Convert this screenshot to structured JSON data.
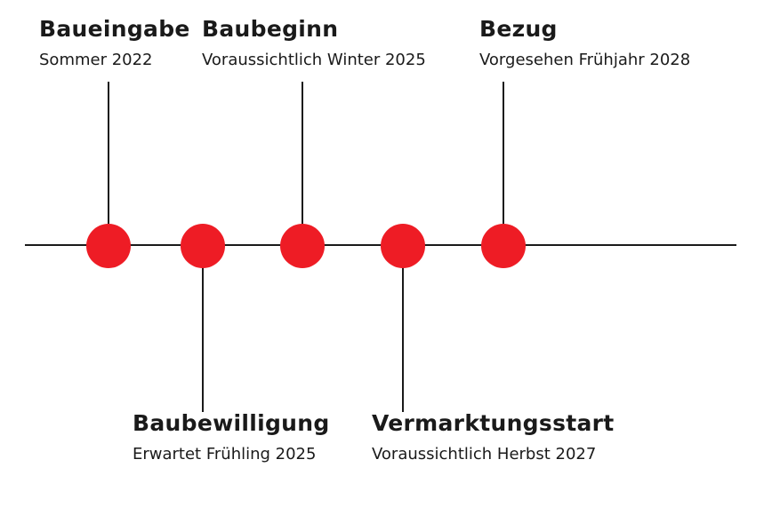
{
  "milestones": [
    {
      "title": "Baueingabe",
      "date": "Sommer 2022"
    },
    {
      "title": "Baubewilligung",
      "date": "Erwartet Frühling 2025"
    },
    {
      "title": "Baubeginn",
      "date": "Voraussichtlich Winter 2025"
    },
    {
      "title": "Vermarktungsstart",
      "date": "Voraussichtlich Herbst 2027"
    },
    {
      "title": "Bezug",
      "date": "Vorgesehen Frühjahr 2028"
    }
  ],
  "colors": {
    "dot": "#ee1c25",
    "line": "#1a1a1a"
  }
}
